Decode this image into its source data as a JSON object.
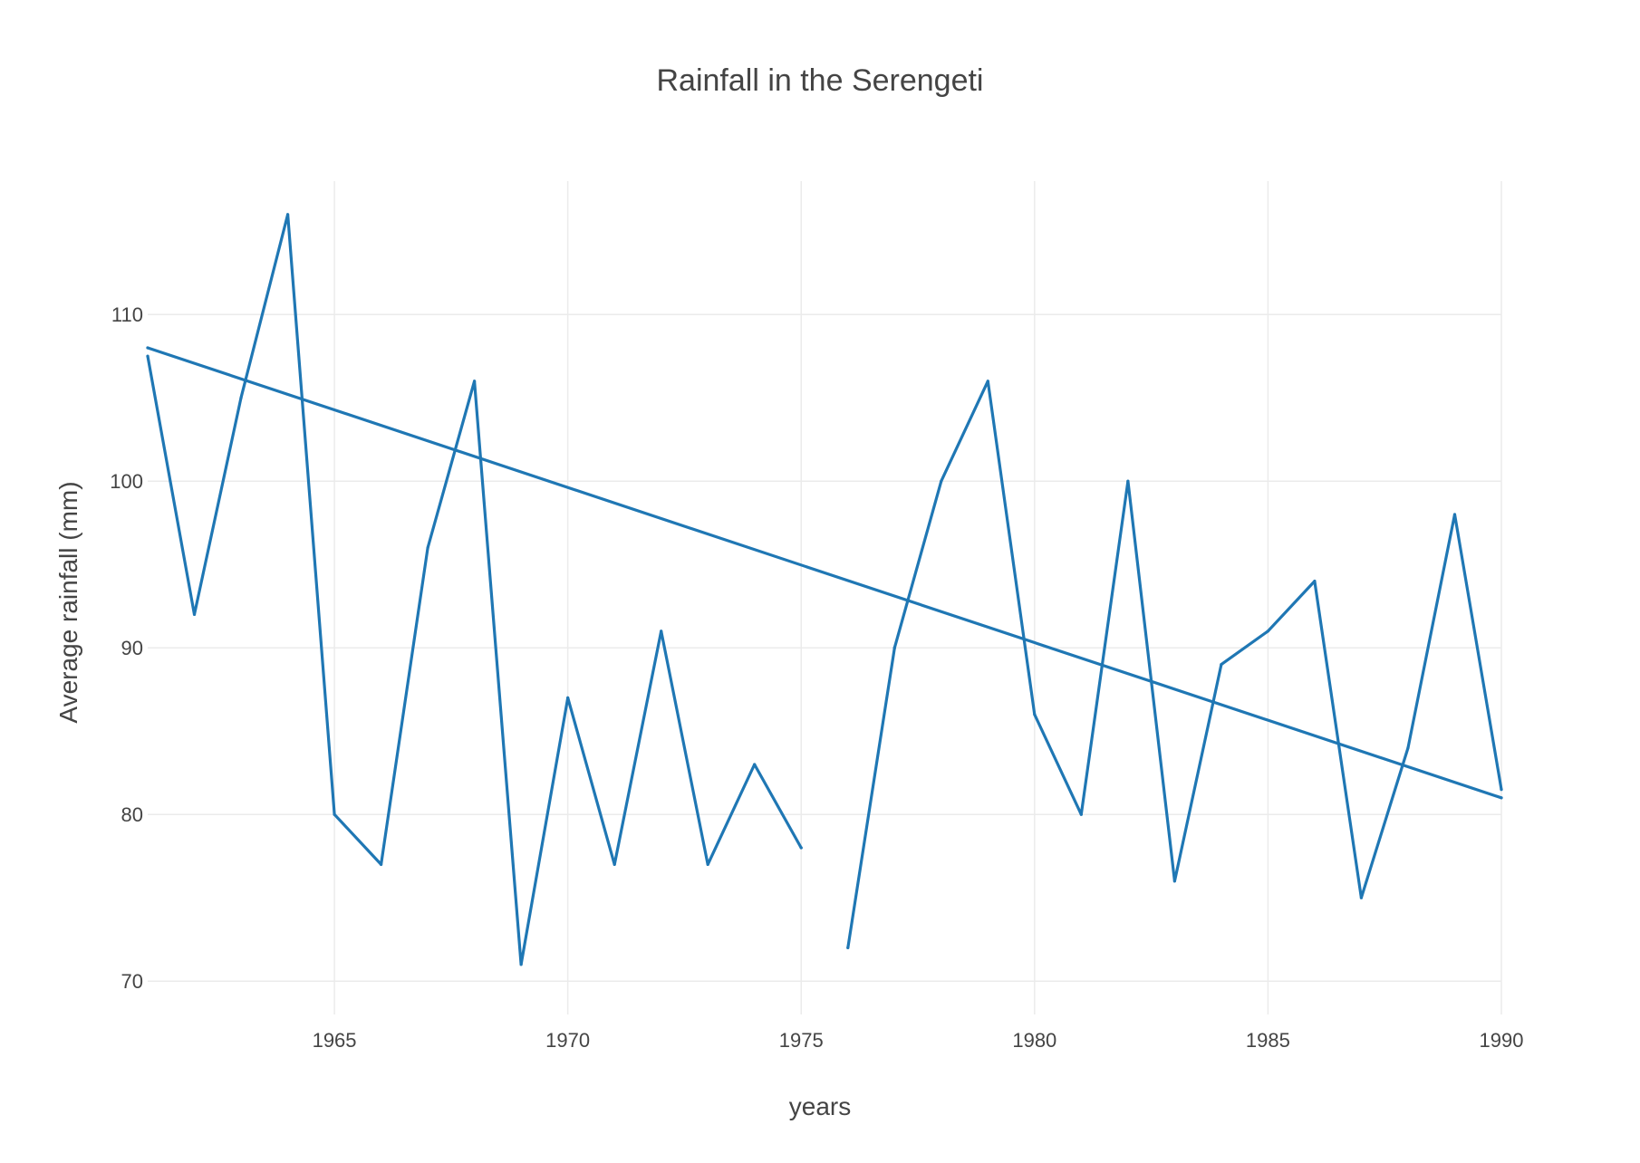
{
  "chart_data": {
    "type": "line",
    "title": "Rainfall in the Serengeti",
    "xlabel": "years",
    "ylabel": "Average rainfall (mm)",
    "xlim": [
      1961,
      1990
    ],
    "ylim": [
      68,
      118
    ],
    "x_ticks": [
      1965,
      1970,
      1975,
      1980,
      1985,
      1990
    ],
    "y_ticks": [
      70,
      80,
      90,
      100,
      110
    ],
    "grid": true,
    "line_color": "#1f77b4",
    "series": [
      {
        "x": [
          1961,
          1962,
          1963,
          1964,
          1965,
          1966,
          1967,
          1968,
          1969,
          1970,
          1971,
          1972,
          1973,
          1974,
          1975,
          1976,
          1977,
          1978,
          1979,
          1980,
          1981,
          1982,
          1983,
          1984,
          1985,
          1986,
          1987,
          1988,
          1989,
          1990
        ],
        "y": [
          107.5,
          92,
          105,
          116,
          80,
          77,
          96,
          106,
          71,
          87,
          77,
          91,
          77,
          83,
          78,
          null,
          90,
          100,
          106,
          86,
          80,
          100,
          76,
          89,
          91,
          94,
          75,
          84,
          98,
          81.5
        ]
      },
      {
        "x": [
          1976,
          1977
        ],
        "y": [
          72,
          90
        ]
      },
      {
        "x": [
          1961,
          1990
        ],
        "y": [
          108,
          81
        ]
      }
    ]
  }
}
